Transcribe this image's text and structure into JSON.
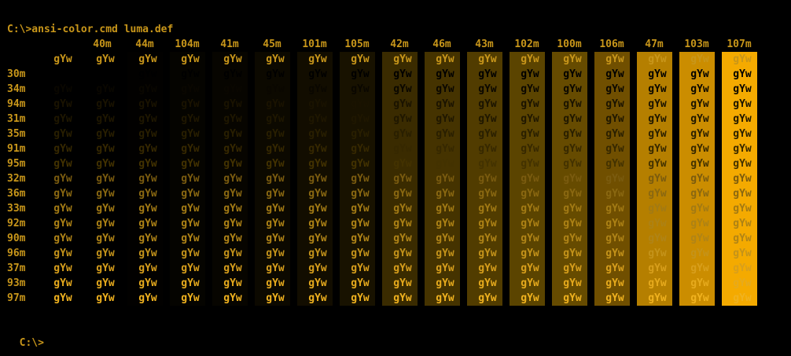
{
  "terminal": {
    "command_line": "C:\\>ansi-color.cmd luma.def",
    "prompt": "C:\\>",
    "sample_text": "gYw",
    "bg_codes": [
      "",
      "40m",
      "44m",
      "104m",
      "41m",
      "45m",
      "101m",
      "105m",
      "42m",
      "46m",
      "43m",
      "102m",
      "100m",
      "106m",
      "47m",
      "103m",
      "107m"
    ],
    "fg_codes": [
      "",
      "30m",
      "34m",
      "94m",
      "31m",
      "35m",
      "91m",
      "95m",
      "32m",
      "36m",
      "33m",
      "92m",
      "90m",
      "96m",
      "37m",
      "93m",
      "97m"
    ],
    "fg_colors": [
      "#c8961a",
      "#000000",
      "#0a0700",
      "#1a1300",
      "#1f1700",
      "#291f00",
      "#362800",
      "#433200",
      "#7a5b0f",
      "#8a6811",
      "#a27a14",
      "#ad8215",
      "#b08417",
      "#c4931a",
      "#d89f1c",
      "#e6aa1d",
      "#f0b21f"
    ],
    "bg_colors": [
      "#000000",
      "#000000",
      "#020100",
      "#050400",
      "#070500",
      "#0c0900",
      "#120d00",
      "#181200",
      "#3a2b00",
      "#453300",
      "#513c00",
      "#5b4400",
      "#664b00",
      "#704f00",
      "#b57f00",
      "#cb8d00",
      "#f4aa00"
    ]
  }
}
